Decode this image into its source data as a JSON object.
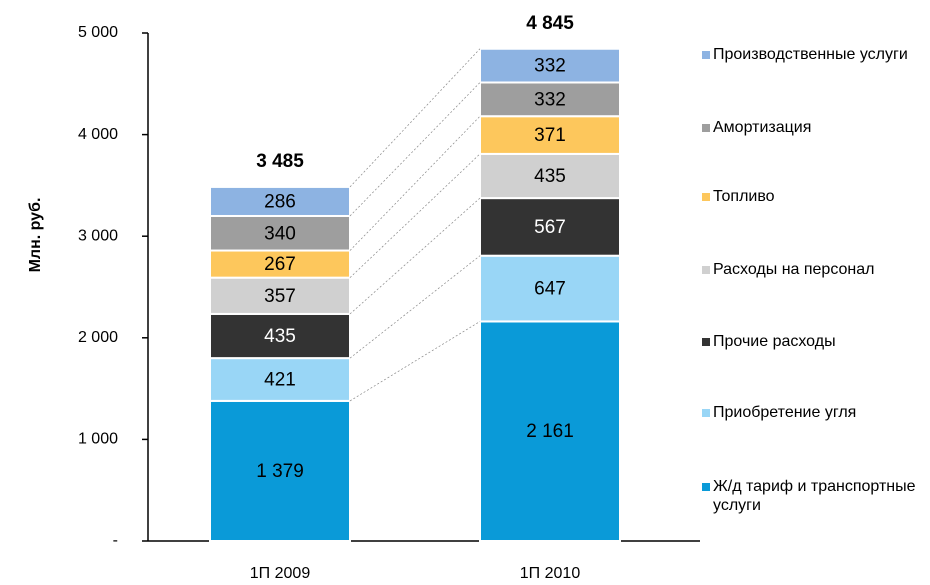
{
  "chart_data": {
    "type": "bar",
    "stacked": true,
    "y_label": "Млн. руб.",
    "categories": [
      "1П 2009",
      "1П 2010"
    ],
    "series": [
      {
        "name": "Ж/д тариф и транспортные услуги",
        "color": "#0a9ad8",
        "values": [
          1379,
          2161
        ],
        "value_labels": [
          "1 379",
          "2 161"
        ]
      },
      {
        "name": "Приобретение угля",
        "color": "#99d6f6",
        "values": [
          421,
          647
        ]
      },
      {
        "name": "Прочие расходы",
        "color": "#333333",
        "values": [
          435,
          567
        ]
      },
      {
        "name": "Расходы на персонал",
        "color": "#d0d0d0",
        "values": [
          357,
          435
        ]
      },
      {
        "name": "Топливо",
        "color": "#fdc75c",
        "values": [
          267,
          371
        ]
      },
      {
        "name": "Амортизация",
        "color": "#9e9e9e",
        "values": [
          340,
          332
        ]
      },
      {
        "name": "Производственные услуги",
        "color": "#8db3e2",
        "values": [
          286,
          332
        ]
      }
    ],
    "totals": [
      3485,
      4845
    ],
    "total_labels": [
      "3 485",
      "4 845"
    ],
    "ylim": [
      0,
      5000
    ],
    "yticks": [
      {
        "value": 0,
        "label": "-"
      },
      {
        "value": 1000,
        "label": "1 000"
      },
      {
        "value": 2000,
        "label": "2 000"
      },
      {
        "value": 3000,
        "label": "3 000"
      },
      {
        "value": 4000,
        "label": "4 000"
      },
      {
        "value": 5000,
        "label": "5 000"
      }
    ],
    "legend": "right"
  }
}
